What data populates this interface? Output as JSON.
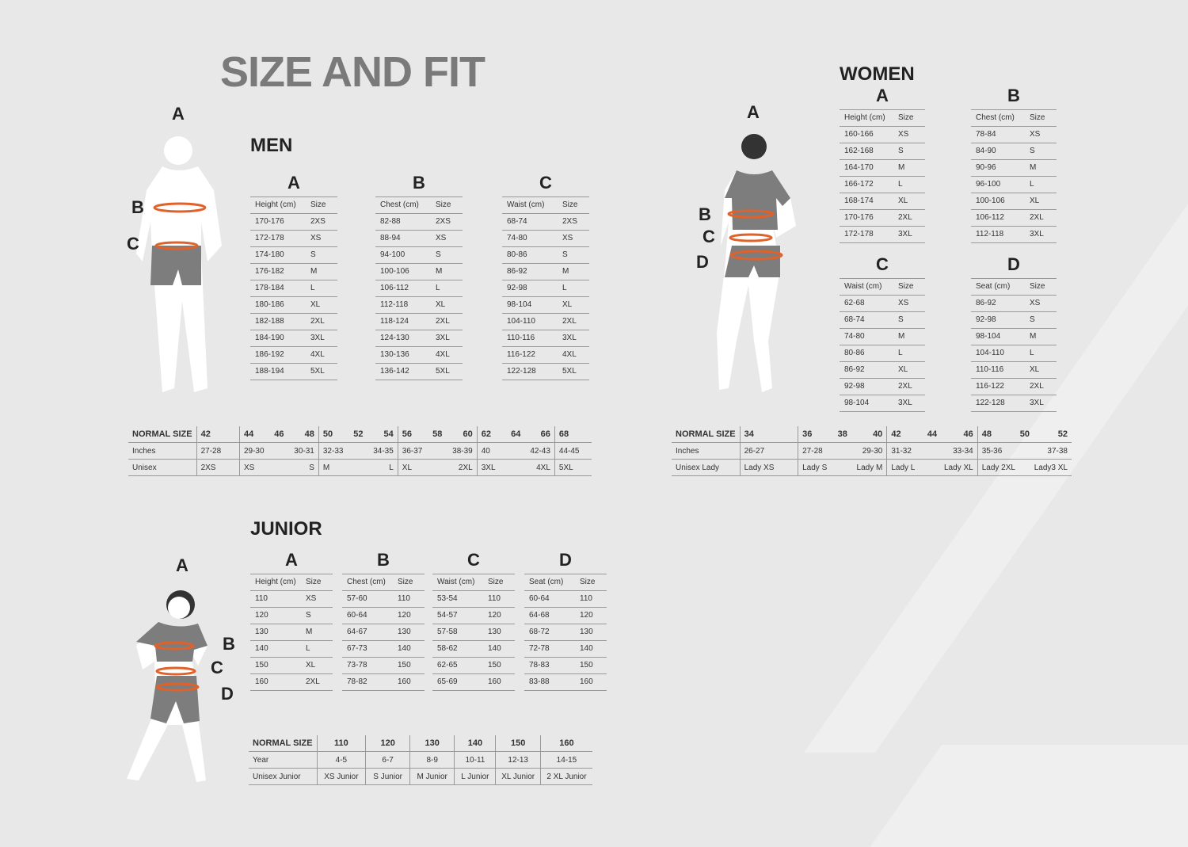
{
  "title": "SIZE AND FIT",
  "men": {
    "heading": "MEN",
    "figure_labels": [
      "A",
      "B",
      "C"
    ],
    "tables": [
      {
        "letter": "A",
        "cols": [
          "Height (cm)",
          "Size"
        ],
        "rows": [
          [
            "170-176",
            "2XS"
          ],
          [
            "172-178",
            "XS"
          ],
          [
            "174-180",
            "S"
          ],
          [
            "176-182",
            "M"
          ],
          [
            "178-184",
            "L"
          ],
          [
            "180-186",
            "XL"
          ],
          [
            "182-188",
            "2XL"
          ],
          [
            "184-190",
            "3XL"
          ],
          [
            "186-192",
            "4XL"
          ],
          [
            "188-194",
            "5XL"
          ]
        ]
      },
      {
        "letter": "B",
        "cols": [
          "Chest (cm)",
          "Size"
        ],
        "rows": [
          [
            "82-88",
            "2XS"
          ],
          [
            "88-94",
            "XS"
          ],
          [
            "94-100",
            "S"
          ],
          [
            "100-106",
            "M"
          ],
          [
            "106-112",
            "L"
          ],
          [
            "112-118",
            "XL"
          ],
          [
            "118-124",
            "2XL"
          ],
          [
            "124-130",
            "3XL"
          ],
          [
            "130-136",
            "4XL"
          ],
          [
            "136-142",
            "5XL"
          ]
        ]
      },
      {
        "letter": "C",
        "cols": [
          "Waist (cm)",
          "Size"
        ],
        "rows": [
          [
            "68-74",
            "2XS"
          ],
          [
            "74-80",
            "XS"
          ],
          [
            "80-86",
            "S"
          ],
          [
            "86-92",
            "M"
          ],
          [
            "92-98",
            "L"
          ],
          [
            "98-104",
            "XL"
          ],
          [
            "104-110",
            "2XL"
          ],
          [
            "110-116",
            "3XL"
          ],
          [
            "116-122",
            "4XL"
          ],
          [
            "122-128",
            "5XL"
          ]
        ]
      }
    ],
    "normal": {
      "labels": [
        "NORMAL SIZE",
        "Inches",
        "Unisex"
      ],
      "groups": [
        [
          [
            "42"
          ],
          [
            "27-28"
          ],
          [
            "2XS"
          ]
        ],
        [
          [
            "44",
            "46",
            "48"
          ],
          [
            "29-30",
            "30-31"
          ],
          [
            "XS",
            "S"
          ]
        ],
        [
          [
            "50",
            "52",
            "54"
          ],
          [
            "32-33",
            "34-35"
          ],
          [
            "M",
            "L"
          ]
        ],
        [
          [
            "56",
            "58",
            "60"
          ],
          [
            "36-37",
            "38-39"
          ],
          [
            "XL",
            "2XL"
          ]
        ],
        [
          [
            "62",
            "64",
            "66"
          ],
          [
            "40",
            "42-43"
          ],
          [
            "3XL",
            "4XL"
          ]
        ],
        [
          [
            "68"
          ],
          [
            "44-45"
          ],
          [
            "5XL"
          ]
        ]
      ]
    }
  },
  "women": {
    "heading": "WOMEN",
    "figure_labels": [
      "A",
      "B",
      "C",
      "D"
    ],
    "tables": [
      {
        "letter": "A",
        "cols": [
          "Height (cm)",
          "Size"
        ],
        "rows": [
          [
            "160-166",
            "XS"
          ],
          [
            "162-168",
            "S"
          ],
          [
            "164-170",
            "M"
          ],
          [
            "166-172",
            "L"
          ],
          [
            "168-174",
            "XL"
          ],
          [
            "170-176",
            "2XL"
          ],
          [
            "172-178",
            "3XL"
          ]
        ]
      },
      {
        "letter": "B",
        "cols": [
          "Chest (cm)",
          "Size"
        ],
        "rows": [
          [
            "78-84",
            "XS"
          ],
          [
            "84-90",
            "S"
          ],
          [
            "90-96",
            "M"
          ],
          [
            "96-100",
            "L"
          ],
          [
            "100-106",
            "XL"
          ],
          [
            "106-112",
            "2XL"
          ],
          [
            "112-118",
            "3XL"
          ]
        ]
      },
      {
        "letter": "C",
        "cols": [
          "Waist (cm)",
          "Size"
        ],
        "rows": [
          [
            "62-68",
            "XS"
          ],
          [
            "68-74",
            "S"
          ],
          [
            "74-80",
            "M"
          ],
          [
            "80-86",
            "L"
          ],
          [
            "86-92",
            "XL"
          ],
          [
            "92-98",
            "2XL"
          ],
          [
            "98-104",
            "3XL"
          ]
        ]
      },
      {
        "letter": "D",
        "cols": [
          "Seat (cm)",
          "Size"
        ],
        "rows": [
          [
            "86-92",
            "XS"
          ],
          [
            "92-98",
            "S"
          ],
          [
            "98-104",
            "M"
          ],
          [
            "104-110",
            "L"
          ],
          [
            "110-116",
            "XL"
          ],
          [
            "116-122",
            "2XL"
          ],
          [
            "122-128",
            "3XL"
          ]
        ]
      }
    ],
    "normal": {
      "labels": [
        "NORMAL SIZE",
        "Inches",
        "Unisex Lady"
      ],
      "groups": [
        [
          [
            "34"
          ],
          [
            "26-27"
          ],
          [
            "Lady XS"
          ]
        ],
        [
          [
            "36",
            "38",
            "40"
          ],
          [
            "27-28",
            "29-30"
          ],
          [
            "Lady S",
            "Lady M"
          ]
        ],
        [
          [
            "42",
            "44",
            "46"
          ],
          [
            "31-32",
            "33-34"
          ],
          [
            "Lady L",
            "Lady XL"
          ]
        ],
        [
          [
            "48",
            "50",
            "52"
          ],
          [
            "35-36",
            "37-38"
          ],
          [
            "Lady 2XL",
            "Lady3 XL"
          ]
        ]
      ]
    }
  },
  "junior": {
    "heading": "JUNIOR",
    "figure_labels": [
      "A",
      "B",
      "C",
      "D"
    ],
    "tables": [
      {
        "letter": "A",
        "cols": [
          "Height (cm)",
          "Size"
        ],
        "rows": [
          [
            "110",
            "XS"
          ],
          [
            "120",
            "S"
          ],
          [
            "130",
            "M"
          ],
          [
            "140",
            "L"
          ],
          [
            "150",
            "XL"
          ],
          [
            "160",
            "2XL"
          ]
        ]
      },
      {
        "letter": "B",
        "cols": [
          "Chest (cm)",
          "Size"
        ],
        "rows": [
          [
            "57-60",
            "110"
          ],
          [
            "60-64",
            "120"
          ],
          [
            "64-67",
            "130"
          ],
          [
            "67-73",
            "140"
          ],
          [
            "73-78",
            "150"
          ],
          [
            "78-82",
            "160"
          ]
        ]
      },
      {
        "letter": "C",
        "cols": [
          "Waist (cm)",
          "Size"
        ],
        "rows": [
          [
            "53-54",
            "110"
          ],
          [
            "54-57",
            "120"
          ],
          [
            "57-58",
            "130"
          ],
          [
            "58-62",
            "140"
          ],
          [
            "62-65",
            "150"
          ],
          [
            "65-69",
            "160"
          ]
        ]
      },
      {
        "letter": "D",
        "cols": [
          "Seat (cm)",
          "Size"
        ],
        "rows": [
          [
            "60-64",
            "110"
          ],
          [
            "64-68",
            "120"
          ],
          [
            "68-72",
            "130"
          ],
          [
            "72-78",
            "140"
          ],
          [
            "78-83",
            "150"
          ],
          [
            "83-88",
            "160"
          ]
        ]
      }
    ],
    "normal": {
      "labels": [
        "NORMAL SIZE",
        "Year",
        "Unisex Junior"
      ],
      "groups": [
        [
          [
            "110"
          ],
          [
            "4-5"
          ],
          [
            "XS Junior"
          ]
        ],
        [
          [
            "120"
          ],
          [
            "6-7"
          ],
          [
            "S Junior"
          ]
        ],
        [
          [
            "130"
          ],
          [
            "8-9"
          ],
          [
            "M Junior"
          ]
        ],
        [
          [
            "140"
          ],
          [
            "10-11"
          ],
          [
            "L Junior"
          ]
        ],
        [
          [
            "150"
          ],
          [
            "12-13"
          ],
          [
            "XL Junior"
          ]
        ],
        [
          [
            "160"
          ],
          [
            "14-15"
          ],
          [
            "2 XL Junior"
          ]
        ]
      ]
    }
  },
  "colors": {
    "background": "#e8e8e8",
    "title": "#7a7a7a",
    "measure_band": "#e0622a",
    "shorts": "#7d7d7d"
  }
}
